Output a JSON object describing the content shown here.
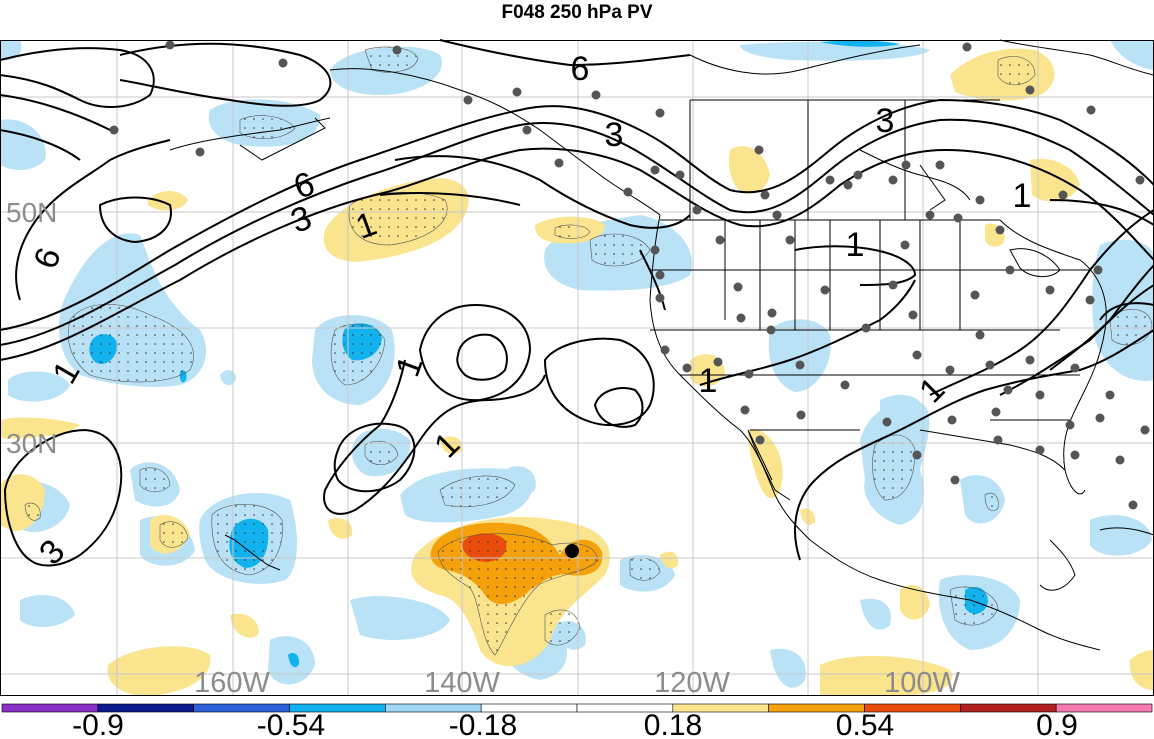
{
  "title": "F048 250 hPa PV",
  "latitude_labels": [
    "50N",
    "30N"
  ],
  "longitude_labels": [
    "160W",
    "140W",
    "120W",
    "100W"
  ],
  "contour_labels": [
    "6",
    "6",
    "6",
    "3",
    "3",
    "3",
    "1",
    "1",
    "1",
    "1",
    "1",
    "1",
    "1",
    "1",
    "3"
  ],
  "colorbar": {
    "tick_labels": [
      "-0.9",
      "-0.54",
      "-0.18",
      "0.18",
      "0.54",
      "0.9"
    ],
    "colors": [
      "#8b2fc9",
      "#0a1a8c",
      "#2a5fd6",
      "#11b2ee",
      "#9fd8f5",
      "#ffffff",
      "#ffffff",
      "#fae58e",
      "#f4a10c",
      "#ea4c0c",
      "#b1201e",
      "#f47ab0"
    ]
  },
  "colors": {
    "positive_light": "#fae58e",
    "positive_mid": "#f4a10c",
    "positive_strong": "#ea4c0c",
    "negative_light": "#b9e2f7",
    "negative_mid": "#11b2ee",
    "station_dot": "#555555",
    "contour": "#000000",
    "grid": "#c8c8c8"
  }
}
